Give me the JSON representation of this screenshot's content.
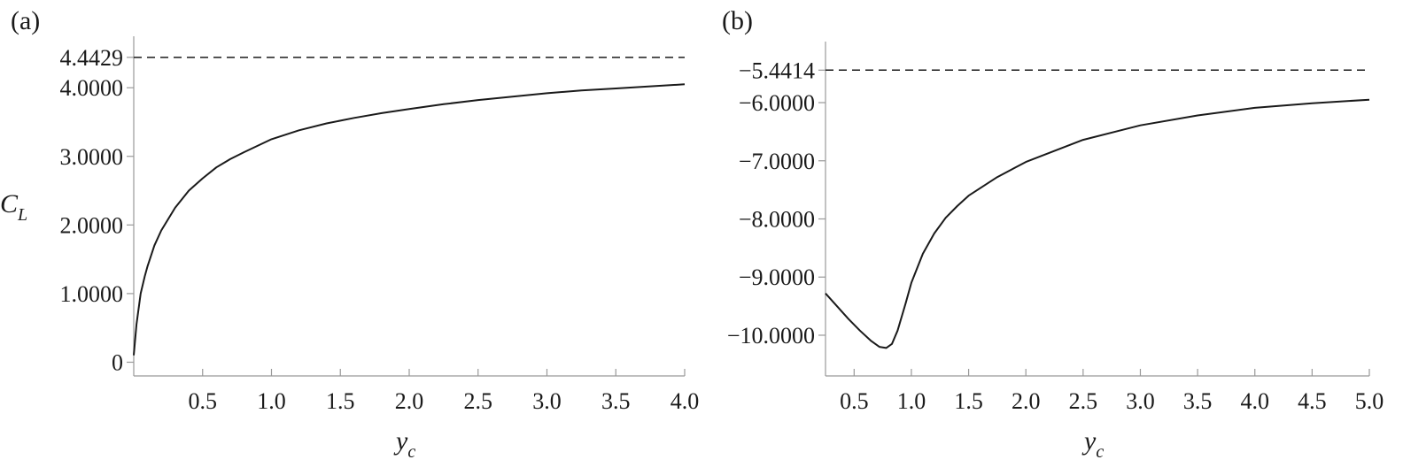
{
  "chart_data": [
    {
      "type": "line",
      "panel_label": "(a)",
      "xlabel": "y",
      "xlabel_sub": "c",
      "ylabel": "C",
      "ylabel_sub": "L",
      "xlim": [
        0.0,
        4.0
      ],
      "ylim": [
        -0.2,
        4.75
      ],
      "x_ticks": [
        0.5,
        1.0,
        1.5,
        2.0,
        2.5,
        3.0,
        3.5,
        4.0
      ],
      "x_tick_labels": [
        "0.5",
        "1.0",
        "1.5",
        "2.0",
        "2.5",
        "3.0",
        "3.5",
        "4.0"
      ],
      "y_ticks": [
        0,
        1,
        2,
        3,
        4,
        4.4429
      ],
      "y_tick_labels": [
        "0",
        "1.0000",
        "2.0000",
        "3.0000",
        "4.0000",
        "4.4429"
      ],
      "asymptote": 4.4429,
      "series": [
        {
          "x": [
            0.0,
            0.02,
            0.05,
            0.08,
            0.1,
            0.15,
            0.2,
            0.3,
            0.4,
            0.5,
            0.6,
            0.7,
            0.8,
            1.0,
            1.2,
            1.4,
            1.6,
            1.8,
            2.0,
            2.25,
            2.5,
            2.75,
            3.0,
            3.25,
            3.5,
            3.75,
            4.0
          ],
          "y": [
            0.1,
            0.55,
            1.0,
            1.25,
            1.4,
            1.7,
            1.92,
            2.25,
            2.5,
            2.68,
            2.84,
            2.96,
            3.06,
            3.25,
            3.38,
            3.48,
            3.56,
            3.63,
            3.69,
            3.76,
            3.82,
            3.87,
            3.92,
            3.96,
            3.99,
            4.02,
            4.05
          ]
        }
      ]
    },
    {
      "type": "line",
      "panel_label": "(b)",
      "xlabel": "y",
      "xlabel_sub": "c",
      "xlim": [
        0.25,
        5.0
      ],
      "ylim": [
        -10.7,
        -4.95
      ],
      "x_ticks": [
        0.5,
        1.0,
        1.5,
        2.0,
        2.5,
        3.0,
        3.5,
        4.0,
        4.5,
        5.0
      ],
      "x_tick_labels": [
        "0.5",
        "1.0",
        "1.5",
        "2.0",
        "2.5",
        "3.0",
        "3.5",
        "4.0",
        "4.5",
        "5.0"
      ],
      "y_ticks": [
        -10,
        -9,
        -8,
        -7,
        -6,
        -5.4414
      ],
      "y_tick_labels": [
        "−10.0000",
        "−9.0000",
        "−8.0000",
        "−7.0000",
        "−6.0000",
        "−5.4414"
      ],
      "asymptote": -5.4414,
      "series": [
        {
          "x": [
            0.25,
            0.35,
            0.45,
            0.55,
            0.65,
            0.72,
            0.78,
            0.83,
            0.88,
            0.95,
            1.0,
            1.1,
            1.2,
            1.3,
            1.4,
            1.5,
            1.75,
            2.0,
            2.5,
            3.0,
            3.5,
            4.0,
            4.5,
            5.0
          ],
          "y": [
            -9.28,
            -9.5,
            -9.72,
            -9.92,
            -10.1,
            -10.2,
            -10.22,
            -10.15,
            -9.92,
            -9.45,
            -9.1,
            -8.6,
            -8.25,
            -7.98,
            -7.78,
            -7.6,
            -7.28,
            -7.02,
            -6.64,
            -6.39,
            -6.22,
            -6.09,
            -6.01,
            -5.95
          ]
        }
      ]
    }
  ]
}
